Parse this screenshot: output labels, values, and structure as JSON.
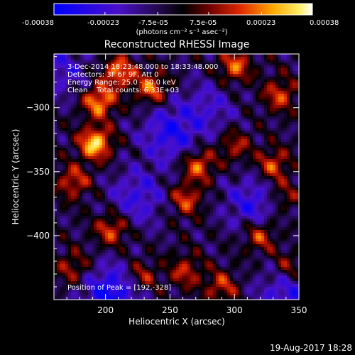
{
  "colorbar": {
    "ticks": [
      "-0.00038",
      "-0.00023",
      "-7.5e-05",
      "7.5e-05",
      "0.00023",
      "0.00038"
    ],
    "tick_values": [
      -0.00038,
      -0.00023,
      -7.5e-05,
      7.5e-05,
      0.00023,
      0.00038
    ],
    "range": [
      -0.00038,
      0.00038
    ],
    "unit_label": "(photons cm⁻² s⁻¹ asec⁻²)"
  },
  "colors": {
    "background": "#000000",
    "frame": "#ffffff",
    "text": "#ffffff",
    "colormap_low": "#0000ff",
    "colormap_mid": "#000000",
    "colormap_high": "#ffffff"
  },
  "chart_data": {
    "type": "heatmap",
    "title": "Reconstructed RHESSI Image",
    "xlabel": "Heliocentric X (arcsec)",
    "ylabel": "Heliocentric Y (arcsec)",
    "xlim": [
      160,
      350
    ],
    "ylim": [
      -450,
      -258
    ],
    "xticks": [
      200,
      250,
      300,
      350
    ],
    "yticks": [
      -300,
      -350,
      -400
    ],
    "colormap": "RHESSI signed (blue-purple negative, black zero, red-orange-yellow-white positive)",
    "peak": [
      192,
      -328
    ],
    "hotspots": [
      {
        "x": 192,
        "y": -328,
        "value": 0.00038
      },
      {
        "x": 195,
        "y": -295,
        "value": 0.00032
      },
      {
        "x": 210,
        "y": -272,
        "value": 0.00028
      },
      {
        "x": 236,
        "y": -285,
        "value": 0.00026
      },
      {
        "x": 272,
        "y": -345,
        "value": 0.00027
      },
      {
        "x": 262,
        "y": -372,
        "value": 0.00023
      },
      {
        "x": 300,
        "y": -268,
        "value": 0.00026
      },
      {
        "x": 335,
        "y": -290,
        "value": 0.00022
      },
      {
        "x": 300,
        "y": -330,
        "value": 0.00018
      },
      {
        "x": 330,
        "y": -345,
        "value": 0.00024
      },
      {
        "x": 175,
        "y": -358,
        "value": 0.00022
      },
      {
        "x": 205,
        "y": -395,
        "value": 0.00025
      },
      {
        "x": 175,
        "y": -425,
        "value": 0.00018
      },
      {
        "x": 228,
        "y": -432,
        "value": 0.0002
      },
      {
        "x": 262,
        "y": -428,
        "value": 0.00019
      },
      {
        "x": 290,
        "y": -440,
        "value": 0.0002
      },
      {
        "x": 320,
        "y": -400,
        "value": 0.00024
      },
      {
        "x": 342,
        "y": -425,
        "value": 0.00018
      },
      {
        "x": 338,
        "y": -370,
        "value": 0.00017
      }
    ],
    "coldspots": [
      {
        "x": 250,
        "y": -320,
        "value": -0.00022
      },
      {
        "x": 225,
        "y": -370,
        "value": -0.00018
      },
      {
        "x": 205,
        "y": -445,
        "value": -0.00028
      },
      {
        "x": 315,
        "y": -375,
        "value": -0.0002
      },
      {
        "x": 340,
        "y": -445,
        "value": -0.0002
      },
      {
        "x": 165,
        "y": -270,
        "value": -0.00015
      },
      {
        "x": 280,
        "y": -300,
        "value": -0.00013
      }
    ],
    "annotations": {
      "time_range": "3-Dec-2014 18:23:48.000 to 18:33:48.000",
      "detectors": "Detectors: 3F 6F 9F, Att 0",
      "energy_range": "Energy Range: 25.0 - 50.0 keV",
      "method_counts": "Clean    Total counts: 6.33E+03",
      "peak_position": "Position of Peak = [192,-328]"
    }
  },
  "footer": {
    "date": "19-Aug-2017 18:28"
  }
}
